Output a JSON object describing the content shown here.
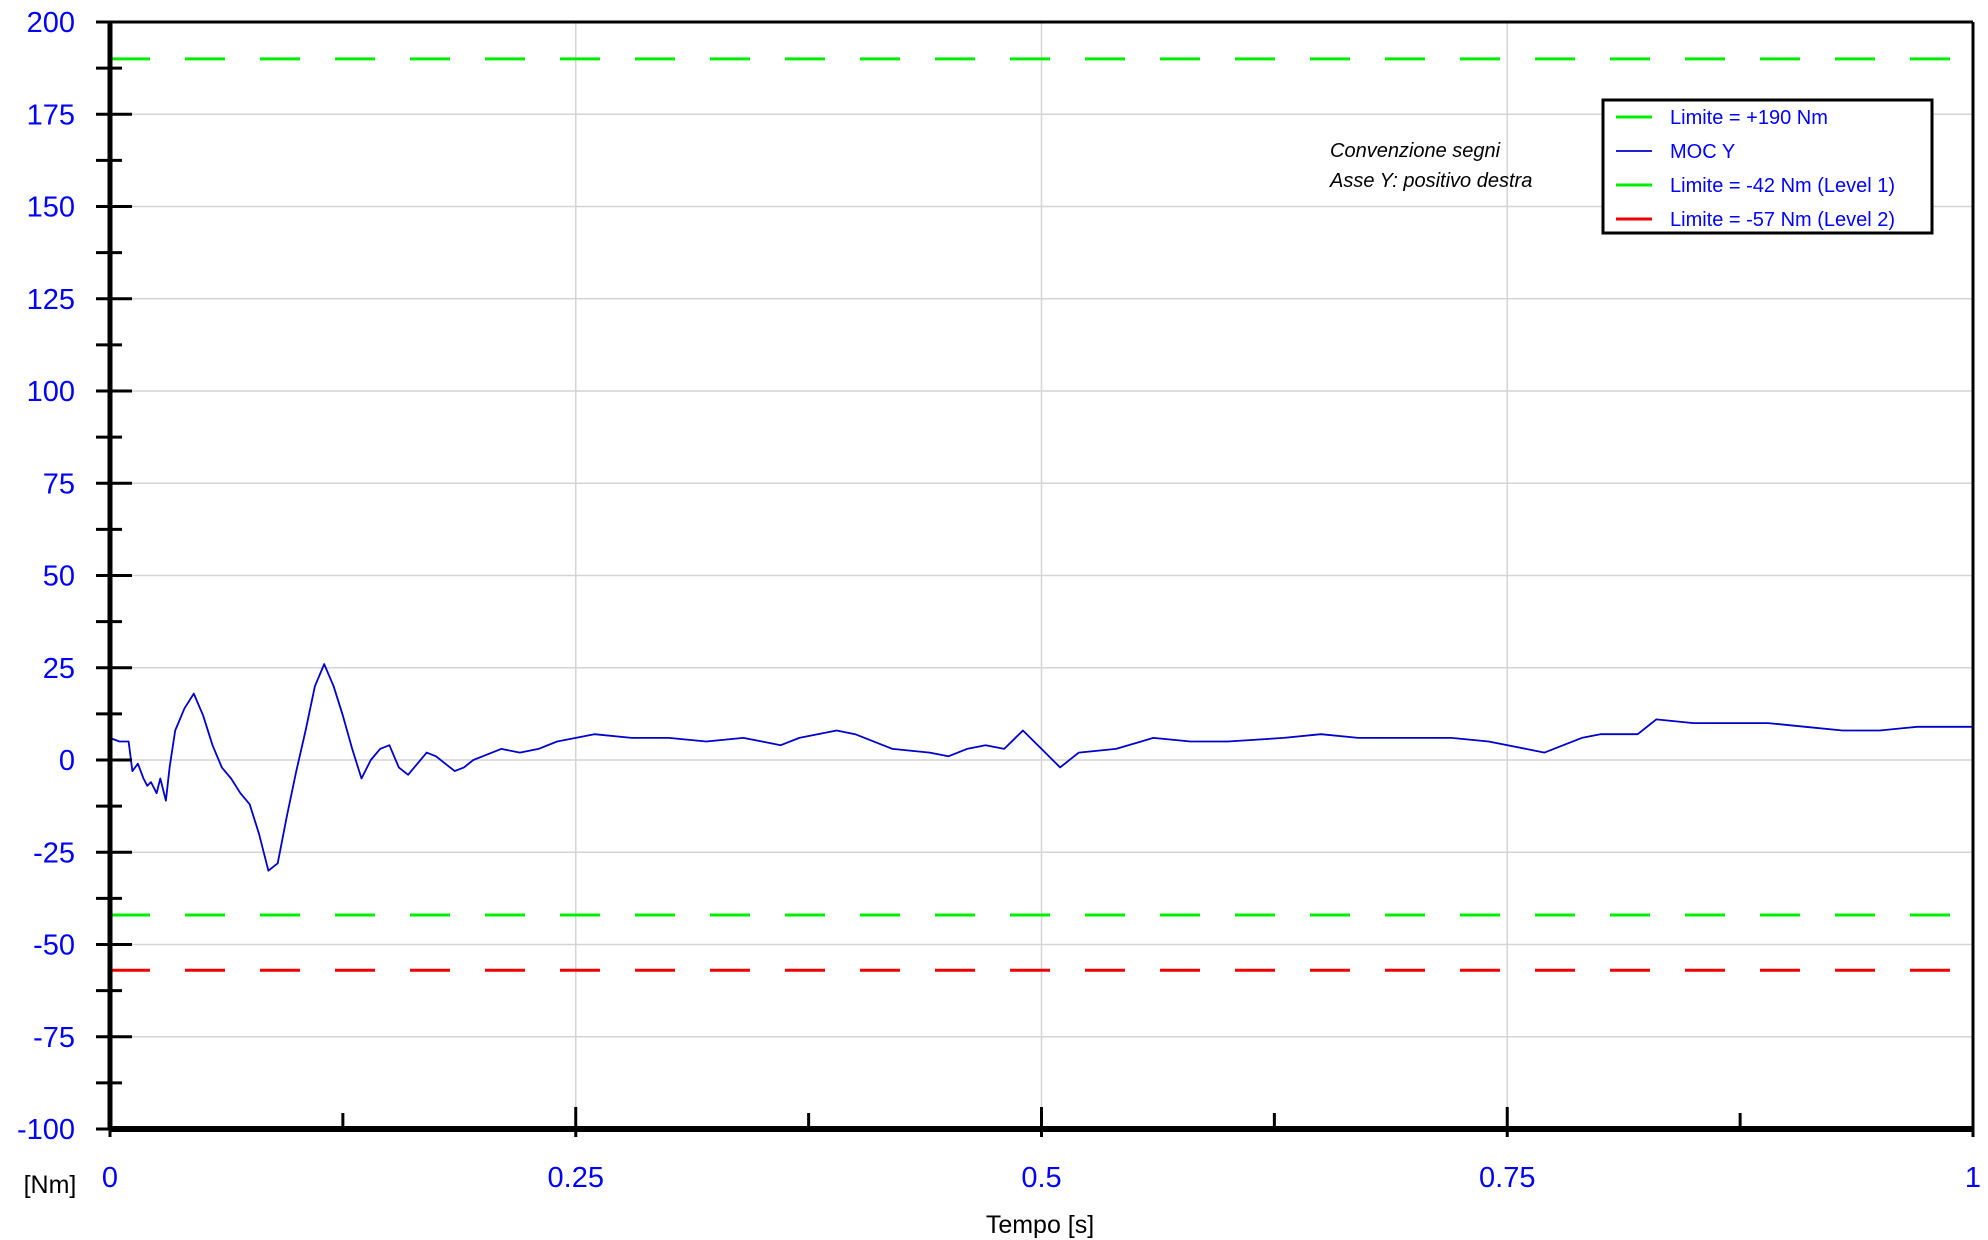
{
  "chart_data": {
    "type": "line",
    "xlabel": "Tempo [s]",
    "ylabel": "[Nm]",
    "xlim": [
      0,
      1
    ],
    "ylim": [
      -100,
      200
    ],
    "x_ticks": [
      "0",
      "0.25",
      "0.5",
      "0.75",
      "1"
    ],
    "y_ticks": [
      "200",
      "175",
      "150",
      "125",
      "100",
      "75",
      "50",
      "25",
      "0",
      "-25",
      "-50",
      "-75",
      "-100"
    ],
    "grid": true,
    "legend_position": "top-right",
    "annotations": [
      "Convenzione segni",
      "Asse Y: positivo destra"
    ],
    "series": [
      {
        "name": "Limite = +190 Nm",
        "style": "dashed",
        "color": "#00ee00",
        "x": [
          0,
          1
        ],
        "y": [
          190,
          190
        ]
      },
      {
        "name": "MOC Y",
        "style": "solid",
        "color": "#0000cc",
        "x": [
          0,
          0.005,
          0.01,
          0.012,
          0.015,
          0.018,
          0.02,
          0.022,
          0.025,
          0.027,
          0.03,
          0.032,
          0.035,
          0.04,
          0.045,
          0.05,
          0.055,
          0.06,
          0.065,
          0.07,
          0.075,
          0.08,
          0.085,
          0.09,
          0.095,
          0.1,
          0.105,
          0.11,
          0.115,
          0.12,
          0.125,
          0.13,
          0.135,
          0.14,
          0.145,
          0.15,
          0.155,
          0.16,
          0.165,
          0.17,
          0.175,
          0.18,
          0.185,
          0.19,
          0.195,
          0.2,
          0.21,
          0.22,
          0.23,
          0.24,
          0.25,
          0.26,
          0.28,
          0.3,
          0.32,
          0.34,
          0.35,
          0.36,
          0.37,
          0.39,
          0.4,
          0.42,
          0.44,
          0.45,
          0.46,
          0.47,
          0.48,
          0.49,
          0.5,
          0.51,
          0.52,
          0.54,
          0.56,
          0.58,
          0.6,
          0.63,
          0.65,
          0.67,
          0.7,
          0.72,
          0.74,
          0.76,
          0.77,
          0.79,
          0.8,
          0.82,
          0.83,
          0.85,
          0.87,
          0.89,
          0.91,
          0.93,
          0.95,
          0.97,
          1.0
        ],
        "y": [
          6,
          5,
          5,
          -3,
          -1,
          -5,
          -7,
          -6,
          -9,
          -5,
          -11,
          -2,
          8,
          14,
          18,
          12,
          4,
          -2,
          -5,
          -9,
          -12,
          -20,
          -30,
          -28,
          -15,
          -3,
          8,
          20,
          26,
          20,
          12,
          3,
          -5,
          0,
          3,
          4,
          -2,
          -4,
          -1,
          2,
          1,
          -1,
          -3,
          -2,
          0,
          1,
          3,
          2,
          3,
          5,
          6,
          7,
          6,
          6,
          5,
          6,
          5,
          4,
          6,
          8,
          7,
          3,
          2,
          1,
          3,
          4,
          3,
          8,
          3,
          -2,
          2,
          3,
          6,
          5,
          5,
          6,
          7,
          6,
          6,
          6,
          5,
          3,
          2,
          6,
          7,
          7,
          11,
          10,
          10,
          10,
          9,
          8,
          8,
          9,
          9
        ]
      },
      {
        "name": "Limite = -42 Nm (Level 1)",
        "style": "dashed",
        "color": "#00ee00",
        "x": [
          0,
          1
        ],
        "y": [
          -42,
          -42
        ]
      },
      {
        "name": "Limite = -57 Nm (Level 2)",
        "style": "dashed",
        "color": "#ee0000",
        "x": [
          0,
          1
        ],
        "y": [
          -57,
          -57
        ]
      }
    ]
  }
}
